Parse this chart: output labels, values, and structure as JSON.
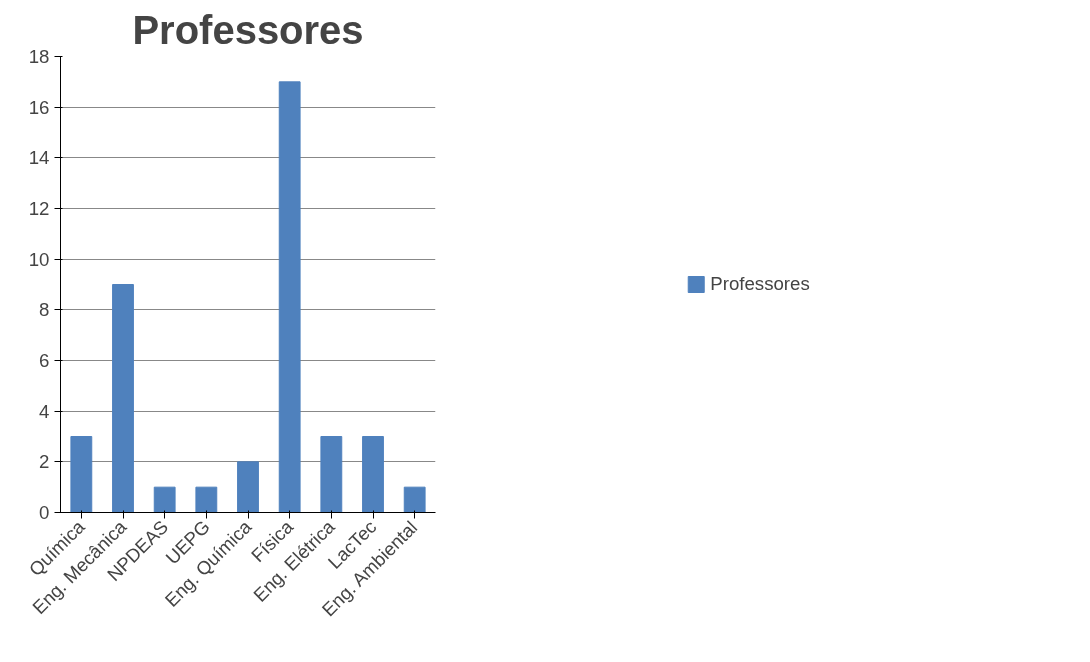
{
  "chart_data": {
    "type": "bar",
    "title": "Professores",
    "categories": [
      "Química",
      "Eng. Mecânica",
      "NPDEAS",
      "UEPG",
      "Eng. Química",
      "Física",
      "Eng. Elétrica",
      "LacTec",
      "Eng. Ambiental"
    ],
    "series": [
      {
        "name": "Professores",
        "color": "#4f81bd",
        "values": [
          3,
          9,
          1,
          1,
          2,
          17,
          3,
          3,
          1
        ]
      }
    ],
    "ylim": [
      0,
      18
    ],
    "yticks": [
      0,
      2,
      4,
      6,
      8,
      10,
      12,
      14,
      16,
      18
    ],
    "grid": "y",
    "legend": "right"
  }
}
